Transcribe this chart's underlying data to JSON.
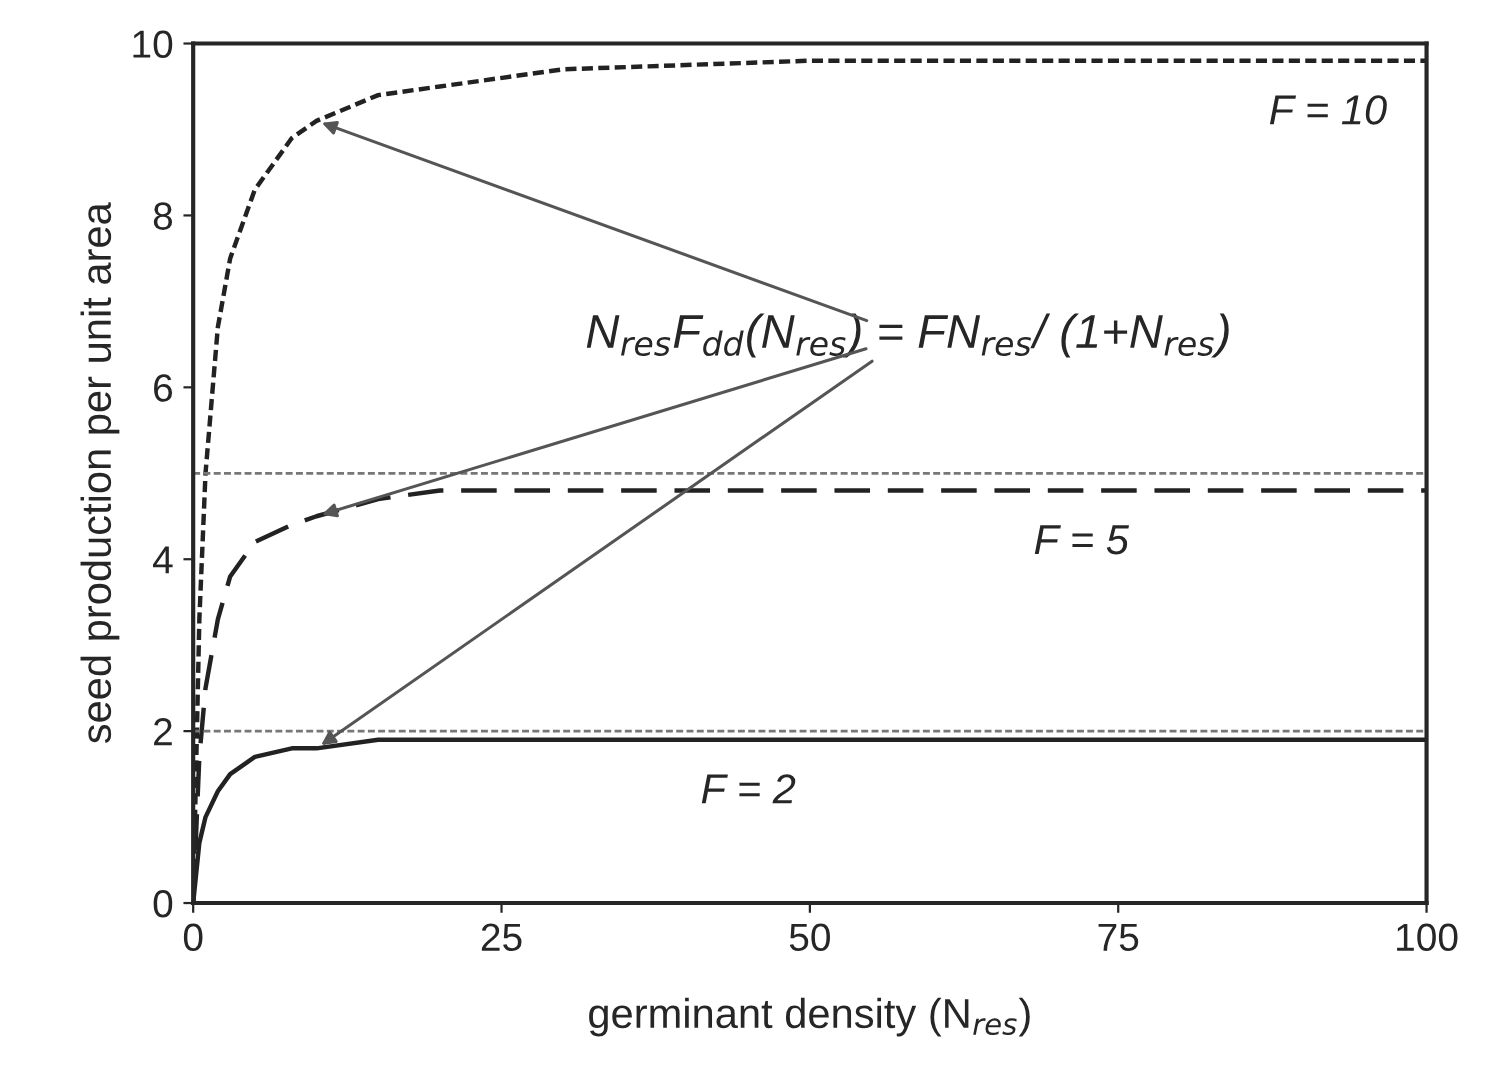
{
  "chart_data": {
    "type": "line",
    "xlabel": "germinant density (N$_{res}$)",
    "ylabel": "seed production per unit area",
    "x": [
      0,
      0.5,
      1,
      2,
      3,
      5,
      8,
      10,
      15,
      20,
      30,
      50,
      75,
      100
    ],
    "series": [
      {
        "color": "#222222",
        "line_style": "dotted",
        "values": [
          0,
          3.3,
          5,
          6.7,
          7.5,
          8.3,
          8.9,
          9.1,
          9.4,
          9.5,
          9.7,
          9.8,
          9.8,
          9.8
        ]
      },
      {
        "color": "#222222",
        "line_style": "dashed",
        "values": [
          0,
          1.7,
          2.5,
          3.3,
          3.8,
          4.2,
          4.4,
          4.5,
          4.7,
          4.8,
          4.8,
          4.8,
          4.8,
          4.8
        ]
      },
      {
        "color": "#222222",
        "line_style": "solid",
        "values": [
          0,
          0.7,
          1,
          1.3,
          1.5,
          1.7,
          1.8,
          1.8,
          1.9,
          1.9,
          1.9,
          1.9,
          1.9,
          1.9
        ]
      }
    ],
    "ref_lines": [
      {
        "axis": "y",
        "value": 5,
        "color": "#777777",
        "line_style": "dotted"
      },
      {
        "axis": "y",
        "value": 2,
        "color": "#777777",
        "line_style": "dotted"
      }
    ],
    "annotations": [
      "N$_{res}$F$_{dd}$(N$_{res}$) = FN$_{res}$/ (1+N$_{res}$)",
      {
        "text": "F = 10",
        "x": 92,
        "y": 9.8
      },
      {
        "text": "F = 5",
        "x": 72,
        "y": 4.8
      },
      {
        "text": "F = 2",
        "x": 45,
        "y": 1.9
      }
    ],
    "xlim": [
      0,
      100
    ],
    "ylim": [
      0,
      10
    ],
    "xticks": [
      0,
      25,
      50,
      75,
      100
    ],
    "yticks": [
      0,
      2,
      4,
      6,
      8,
      10
    ],
    "grid": false,
    "legend": false,
    "marker": "none"
  }
}
